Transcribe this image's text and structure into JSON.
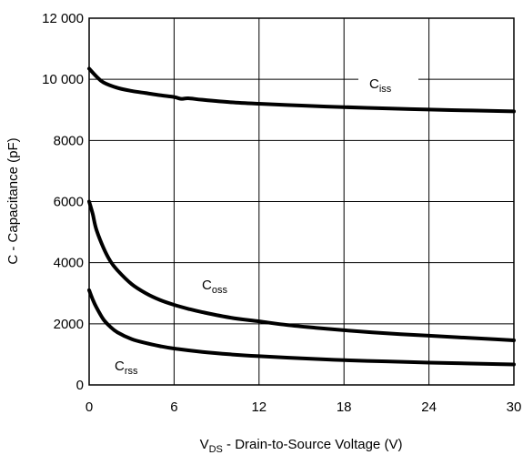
{
  "chart_data": {
    "type": "line",
    "xlabel_main": "V",
    "xlabel_sub": "DS",
    "xlabel_rest": " - Drain-to-Source Voltage (V)",
    "ylabel": "C - Capacitance (pF)",
    "xlim": [
      0,
      30
    ],
    "ylim": [
      0,
      12000
    ],
    "grid": true,
    "x_ticks": [
      0,
      6,
      12,
      18,
      24,
      30
    ],
    "x_tick_labels": [
      "0",
      "6",
      "12",
      "18",
      "24",
      "30"
    ],
    "y_ticks": [
      0,
      2000,
      4000,
      6000,
      8000,
      10000,
      12000
    ],
    "y_tick_labels": [
      "0",
      "2000",
      "4000",
      "6000",
      "8000",
      "10 000",
      "12 000"
    ],
    "series": [
      {
        "name_main": "C",
        "name_sub": "iss",
        "x": [
          0,
          0.5,
          1,
          2,
          3,
          4,
          5,
          6,
          6.5,
          7,
          8,
          10,
          12,
          15,
          18,
          21,
          24,
          27,
          30
        ],
        "y": [
          10350,
          10100,
          9900,
          9720,
          9620,
          9550,
          9480,
          9420,
          9360,
          9380,
          9330,
          9250,
          9200,
          9140,
          9090,
          9050,
          9010,
          8980,
          8950
        ]
      },
      {
        "name_main": "C",
        "name_sub": "oss",
        "x": [
          0,
          0.25,
          0.5,
          1,
          1.5,
          2,
          3,
          4,
          5,
          6,
          7,
          8,
          10,
          12,
          14,
          16,
          18,
          20,
          22,
          24,
          26,
          28,
          30
        ],
        "y": [
          6000,
          5600,
          5100,
          4500,
          4050,
          3750,
          3300,
          3000,
          2780,
          2620,
          2490,
          2380,
          2200,
          2080,
          1960,
          1870,
          1790,
          1720,
          1660,
          1610,
          1560,
          1510,
          1460
        ]
      },
      {
        "name_main": "C",
        "name_sub": "rss",
        "x": [
          0,
          0.25,
          0.5,
          1,
          1.5,
          2,
          3,
          4,
          5,
          6,
          8,
          10,
          12,
          15,
          18,
          21,
          24,
          27,
          30
        ],
        "y": [
          3100,
          2800,
          2550,
          2150,
          1900,
          1720,
          1500,
          1370,
          1270,
          1190,
          1080,
          1000,
          940,
          870,
          810,
          770,
          730,
          700,
          670
        ]
      }
    ]
  }
}
